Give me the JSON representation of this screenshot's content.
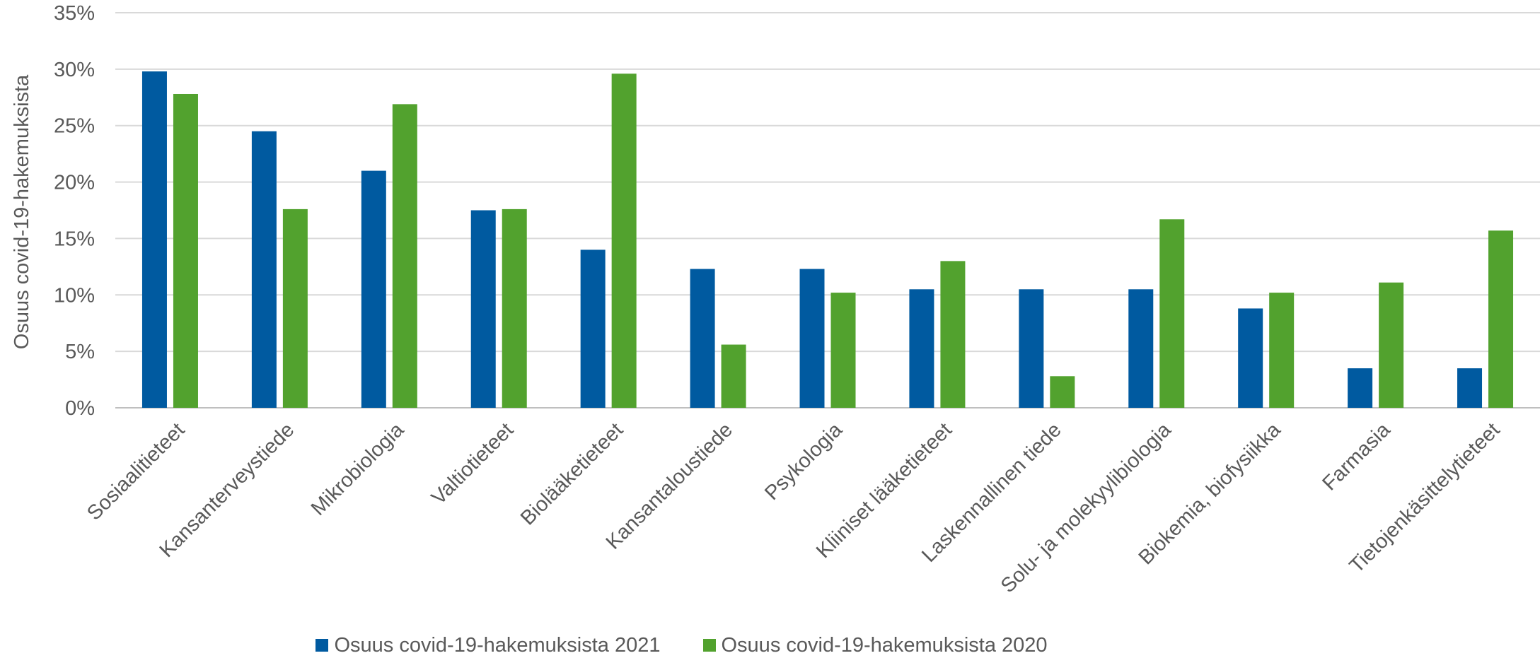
{
  "chart_data": {
    "type": "bar",
    "title": "",
    "xlabel": "",
    "ylabel": "Osuus covid-19-hakemuksista",
    "ylim": [
      0,
      35
    ],
    "yticks": [
      "0%",
      "5%",
      "10%",
      "15%",
      "20%",
      "25%",
      "30%",
      "35%"
    ],
    "grid": true,
    "legend_position": "bottom",
    "categories": [
      "Sosiaalitieteet",
      "Kansanterveystiede",
      "Mikrobiologia",
      "Valtiotieteet",
      "Biolääketieteet",
      "Kansantaloustiede",
      "Psykologia",
      "Kliiniset lääketieteet",
      "Laskennallinen tiede",
      "Solu- ja molekyylibiologia",
      "Biokemia, biofysiikka",
      "Farmasia",
      "Tietojenkäsittelytieteet"
    ],
    "series": [
      {
        "name": "Osuus covid-19-hakemuksista 2021",
        "color": "#005AA0",
        "values": [
          29.8,
          24.5,
          21.0,
          17.5,
          14.0,
          12.3,
          12.3,
          10.5,
          10.5,
          10.5,
          8.8,
          3.5,
          3.5
        ]
      },
      {
        "name": "Osuus covid-19-hakemuksista 2020",
        "color": "#52A22E",
        "values": [
          27.8,
          17.6,
          26.9,
          17.6,
          29.6,
          5.6,
          10.2,
          13.0,
          2.8,
          16.7,
          10.2,
          11.1,
          15.7
        ]
      }
    ]
  }
}
